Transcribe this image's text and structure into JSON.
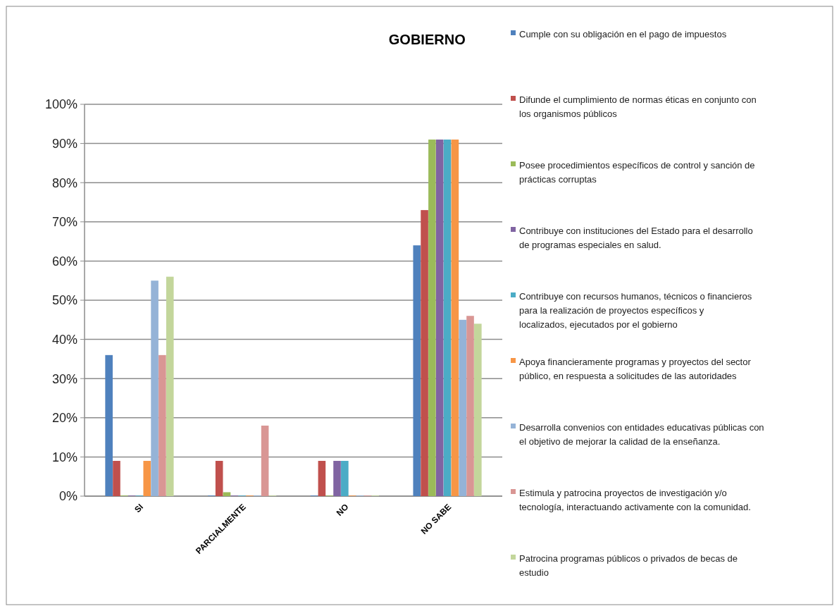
{
  "chart_data": {
    "type": "bar",
    "title": "GOBIERNO",
    "categories": [
      "SI",
      "PARCIALMENTE",
      "NO",
      "NO SABE"
    ],
    "series": [
      {
        "name": "Cumple con su obligación en el pago de impuestos",
        "color": "#4f81bd",
        "values": [
          36,
          0,
          0,
          64
        ]
      },
      {
        "name": "Difunde el cumplimiento de normas éticas en conjunto con los organismos públicos",
        "color": "#c0504d",
        "values": [
          9,
          9,
          9,
          73
        ]
      },
      {
        "name": "Posee procedimientos específicos de control y sanción de prácticas corruptas",
        "color": "#9bbb59",
        "values": [
          0,
          1,
          0,
          91
        ]
      },
      {
        "name": "Contribuye con instituciones del Estado para el desarrollo de programas especiales en salud.",
        "color": "#8064a2",
        "values": [
          0,
          0,
          9,
          91
        ]
      },
      {
        "name": "Contribuye con recursos humanos, técnicos o financieros para la realización de proyectos específicos y localizados, ejecutados por el gobierno",
        "color": "#4bacc6",
        "values": [
          0,
          0,
          9,
          91
        ]
      },
      {
        "name": "Apoya financieramente programas y proyectos del sector público, en respuesta a solicitudes de las autoridades",
        "color": "#f79646",
        "values": [
          9,
          0,
          0,
          91
        ]
      },
      {
        "name": "Desarrolla convenios con entidades educativas públicas con el objetivo de mejorar la calidad de la enseñanza.",
        "color": "#95b3d7",
        "values": [
          55,
          0,
          0,
          45
        ]
      },
      {
        "name": "Estimula y patrocina proyectos de investigación y/o tecnología, interactuando activamente con la comunidad.",
        "color": "#d99694",
        "values": [
          36,
          18,
          0,
          46
        ]
      },
      {
        "name": "Patrocina programas públicos o privados de becas de estudio",
        "color": "#c3d69b",
        "values": [
          56,
          0,
          0,
          44
        ]
      }
    ],
    "ylim": [
      0,
      100
    ],
    "yticks": [
      {
        "value": 0,
        "label": "0%"
      },
      {
        "value": 10,
        "label": "10%"
      },
      {
        "value": 20,
        "label": "20%"
      },
      {
        "value": 30,
        "label": "30%"
      },
      {
        "value": 40,
        "label": "40%"
      },
      {
        "value": 50,
        "label": "50%"
      },
      {
        "value": 60,
        "label": "60%"
      },
      {
        "value": 70,
        "label": "70%"
      },
      {
        "value": 80,
        "label": "80%"
      },
      {
        "value": 90,
        "label": "90%"
      },
      {
        "value": 100,
        "label": "100%"
      }
    ],
    "grid": "y",
    "legend": "right"
  }
}
